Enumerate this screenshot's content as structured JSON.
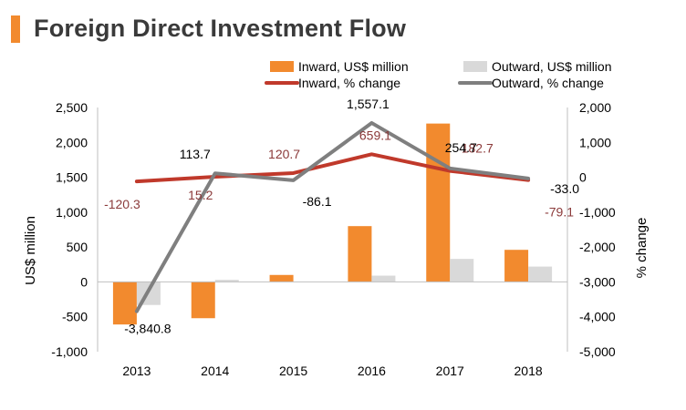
{
  "header": {
    "title": "Foreign Direct Investment Flow",
    "accent_color": "#f28a2e"
  },
  "chart_data": {
    "type": "bar",
    "categories": [
      "2013",
      "2014",
      "2015",
      "2016",
      "2017",
      "2018"
    ],
    "ylabel": "US$ million",
    "y2label": "% change",
    "ylim": [
      -1000,
      2500
    ],
    "yticks": [
      2500,
      2000,
      1500,
      1000,
      500,
      0,
      -500,
      -1000
    ],
    "ytick_labels": [
      "2,500",
      "2,000",
      "1,500",
      "1,000",
      "500",
      "0",
      "-500",
      "-1,000"
    ],
    "y2lim": [
      -5000,
      2000
    ],
    "y2ticks": [
      2000,
      1000,
      0,
      -1000,
      -2000,
      -3000,
      -4000,
      -5000
    ],
    "y2tick_labels": [
      "2,000",
      "1,000",
      "0",
      "-1,000",
      "-2,000",
      "-3,000",
      "-4,000",
      "-5,000"
    ],
    "grid": false,
    "legend_position": "top-right",
    "series": [
      {
        "name": "Inward, US$ million",
        "kind": "bar",
        "axis": "left",
        "color": "#f28a2e",
        "values": [
          -610,
          -520,
          100,
          800,
          2270,
          460
        ]
      },
      {
        "name": "Outward, US$ million",
        "kind": "bar",
        "axis": "left",
        "color": "#d9d9d9",
        "values": [
          -330,
          30,
          0,
          90,
          330,
          220
        ]
      },
      {
        "name": "Inward, % change",
        "kind": "line",
        "axis": "right",
        "color": "#c0392b",
        "label_color": "#8b3a3a",
        "values": [
          -120.3,
          15.2,
          120.7,
          659.1,
          182.7,
          -79.1
        ],
        "labels": [
          "-120.3",
          "15.2",
          "120.7",
          "659.1",
          "182.7",
          "-79.1"
        ]
      },
      {
        "name": "Outward, % change",
        "kind": "line",
        "axis": "right",
        "color": "#7f7f7f",
        "label_color": "#000000",
        "values": [
          -3840.8,
          113.7,
          -86.1,
          1557.1,
          254.7,
          -33.0
        ],
        "labels": [
          "-3,840.8",
          "113.7",
          "-86.1",
          "1,557.1",
          "254.7",
          "-33.0"
        ]
      }
    ]
  }
}
